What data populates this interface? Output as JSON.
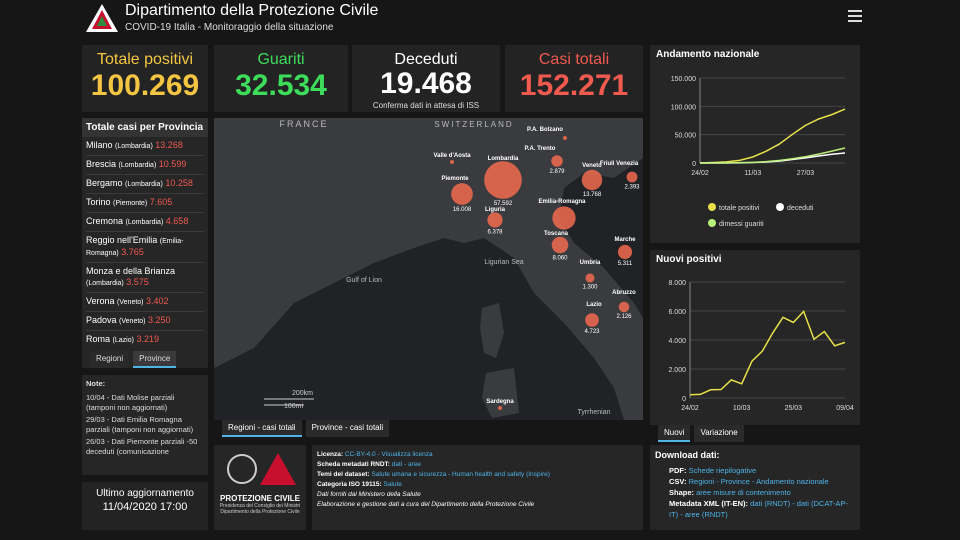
{
  "header": {
    "title": "Dipartimento della Protezione Civile",
    "subtitle": "COVID-19 Italia - Monitoraggio della situazione"
  },
  "kpis": [
    {
      "label": "Totale positivi",
      "value": "100.269",
      "color": "#f4c542"
    },
    {
      "label": "Guariti",
      "value": "32.534",
      "color": "#3ddc5a"
    },
    {
      "label": "Deceduti",
      "value": "19.468",
      "note": "Conferma dati in attesa di ISS",
      "color": "#ffffff"
    },
    {
      "label": "Casi totali",
      "value": "152.271",
      "color": "#f05a4f"
    }
  ],
  "provinces": {
    "title": "Totale casi per Provincia",
    "rows": [
      {
        "name": "Milano",
        "region": "(Lombardia)",
        "value": "13.268"
      },
      {
        "name": "Brescia",
        "region": "(Lombardia)",
        "value": "10.599"
      },
      {
        "name": "Bergamo",
        "region": "(Lombardia)",
        "value": "10.258"
      },
      {
        "name": "Torino",
        "region": "(Piemonte)",
        "value": "7.605"
      },
      {
        "name": "Cremona",
        "region": "(Lombardia)",
        "value": "4.658"
      },
      {
        "name": "Reggio nell'Emilia",
        "region": "(Emilia-Romagna)",
        "value": "3.765"
      },
      {
        "name": "Monza e della Brianza",
        "region": "(Lombardia)",
        "value": "3.575"
      },
      {
        "name": "Verona",
        "region": "(Veneto)",
        "value": "3.402"
      },
      {
        "name": "Padova",
        "region": "(Veneto)",
        "value": "3.250"
      },
      {
        "name": "Roma",
        "region": "(Lazio)",
        "value": "3.219"
      }
    ],
    "tabs": [
      "Regioni",
      "Province"
    ]
  },
  "map": {
    "labels": [
      "FRANCE",
      "SWITZERLAND",
      "Gulf of Lion",
      "Ligurian Sea",
      "Tyrrhenian"
    ],
    "scale": [
      "200km",
      "100mi"
    ],
    "bubbles": [
      {
        "name": "P.A. Bolzano"
      },
      {
        "name": "P.A. Trento",
        "value": 2879,
        "value_label": "2.879"
      },
      {
        "name": "Lombardia",
        "value": 57592,
        "value_label": "57.592"
      },
      {
        "name": "Valle d'Aosta"
      },
      {
        "name": "Piemonte",
        "value": 16008,
        "value_label": "16.008"
      },
      {
        "name": "Veneto",
        "value": 13768,
        "value_label": "13.768"
      },
      {
        "name": "Friuli Venezia",
        "value": 2393,
        "value_label": "2.393"
      },
      {
        "name": "Liguria",
        "value": 6378,
        "value_label": "6.378"
      },
      {
        "name": "Emilia-Romagna",
        "value": 19000
      },
      {
        "name": "Toscana",
        "value": 8060,
        "value_label": "8.060"
      },
      {
        "name": "Marche",
        "value": 5311,
        "value_label": "5.311"
      },
      {
        "name": "Umbria",
        "value": 1300,
        "value_label": "1.300"
      },
      {
        "name": "Lazio",
        "value": 4723,
        "value_label": "4.723"
      },
      {
        "name": "Abruzzo",
        "value": 2126,
        "value_label": "2.126"
      },
      {
        "name": "Sardegna"
      }
    ],
    "tabs": [
      "Regioni - casi totali",
      "Province - casi totali"
    ]
  },
  "notes": {
    "title": "Note:",
    "lines": [
      "10/04 - Dati Molise parziali (tamponi non aggiornati)",
      "29/03 - Dati Emilia Romagna parziali (tamponi non aggiornati)",
      "26/03 - Dati Piemonte parziali -50 deceduti (comunicazione"
    ]
  },
  "update": {
    "label": "Ultimo aggiornamento",
    "date": "11/04/2020 17:00"
  },
  "logo": {
    "name": "PROTEZIONE CIVILE",
    "lines": [
      "Presidenza del Consiglio dei Ministri",
      "Dipartimento della Protezione Civile"
    ]
  },
  "license": [
    {
      "label": "Licenza:",
      "link": "CC-BY-4.0 - Visualizza licenza"
    },
    {
      "label": "Scheda metadati RNDT:",
      "link": "dati - aree"
    },
    {
      "label": "Temi del dataset:",
      "link": "Salute umana e sicurezza - Human health and safety (Inspire)"
    },
    {
      "label": "Categoria ISO 19115:",
      "link": "Salute"
    },
    {
      "label": "Dati forniti dal Ministero della Salute"
    },
    {
      "label": "Elaborazione e gestione dati a cura del Dipartimento della Protezione Civile"
    }
  ],
  "download": {
    "title": "Download dati:",
    "items": [
      {
        "label": "PDF:",
        "link": "Schede riepilogative"
      },
      {
        "label": "CSV:",
        "link": "Regioni - Province - Andamento nazionale"
      },
      {
        "label": "Shape:",
        "link": "aree misure di contenimento"
      },
      {
        "label": "Metadata XML (IT-EN):",
        "link": "dati (RNDT) - dati (DCAT-AP-IT) - aree (RNDT)"
      }
    ]
  },
  "chart_tabs": [
    "Nuovi",
    "Variazione"
  ],
  "chart_data": [
    {
      "type": "line",
      "title": "Andamento nazionale",
      "categories": [
        "24/02",
        null,
        null,
        null,
        "11/03",
        null,
        null,
        null,
        "27/03",
        null,
        null,
        null
      ],
      "series": [
        {
          "name": "totale positivi",
          "color": "#e8e04a",
          "values": [
            221,
            900,
            2036,
            4636,
            10590,
            20603,
            33190,
            50418,
            66414,
            77635,
            85388,
            95262
          ]
        },
        {
          "name": "deceduti",
          "color": "#ffffff",
          "values": [
            7,
            21,
            79,
            233,
            827,
            1809,
            3405,
            6077,
            9134,
            12428,
            15362,
            17669
          ]
        },
        {
          "name": "dimessi guariti",
          "color": "#b9f07a",
          "values": [
            1,
            46,
            160,
            589,
            1045,
            2335,
            4440,
            7432,
            10950,
            15729,
            20996,
            26491
          ]
        }
      ],
      "ylim": [
        0,
        150000
      ],
      "yticks": [
        0,
        {
          "value": 50000,
          "label": "50.000"
        },
        {
          "value": 100000,
          "label": "100.000"
        },
        {
          "value": 150000,
          "label": "150.000"
        }
      ],
      "grid": true
    },
    {
      "type": "line",
      "title": "Nuovi positivi",
      "categories": [
        "24/02",
        null,
        null,
        null,
        null,
        "10/03",
        null,
        null,
        null,
        null,
        "25/03",
        null,
        null,
        null,
        null,
        "09/04"
      ],
      "values": [
        221,
        250,
        566,
        587,
        1247,
        977,
        2547,
        3233,
        4480,
        5560,
        5210,
        5974,
        4053,
        4585,
        3599,
        3836
      ],
      "color": "#e8e04a",
      "ylim": [
        0,
        8000
      ],
      "yticks": [
        0,
        {
          "value": 2000,
          "label": "2.000"
        },
        {
          "value": 4000,
          "label": "4.000"
        },
        {
          "value": 6000,
          "label": "6.000"
        },
        {
          "value": 8000,
          "label": "8.000"
        }
      ],
      "grid": true
    }
  ]
}
